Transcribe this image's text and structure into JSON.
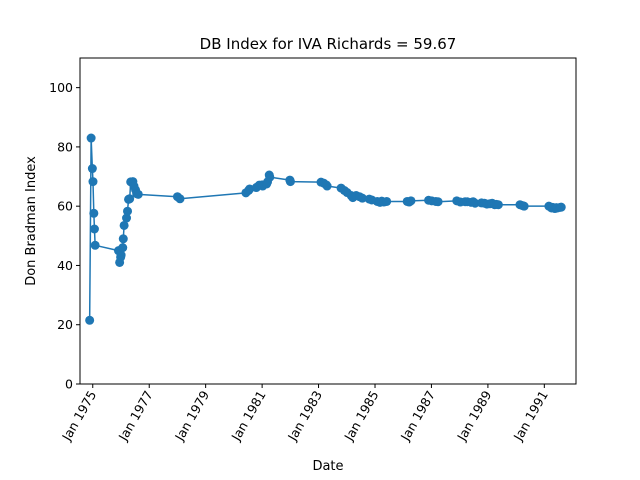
{
  "chart_data": {
    "type": "line",
    "title": "DB Index for IVA Richards = 59.67",
    "xlabel": "Date",
    "ylabel": "Don Bradman Index",
    "ylim": [
      0,
      110
    ],
    "yticks": [
      0,
      20,
      40,
      60,
      80,
      100
    ],
    "xlim": [
      "1974-07-20",
      "1992-02-15"
    ],
    "xticks": [
      {
        "date": "1975-01-01",
        "label": "Jan 1975"
      },
      {
        "date": "1977-01-01",
        "label": "Jan 1977"
      },
      {
        "date": "1979-01-01",
        "label": "Jan 1979"
      },
      {
        "date": "1981-01-01",
        "label": "Jan 1981"
      },
      {
        "date": "1983-01-01",
        "label": "Jan 1983"
      },
      {
        "date": "1985-01-01",
        "label": "Jan 1985"
      },
      {
        "date": "1987-01-01",
        "label": "Jan 1987"
      },
      {
        "date": "1989-01-01",
        "label": "Jan 1989"
      },
      {
        "date": "1991-01-01",
        "label": "Jan 1991"
      }
    ],
    "grid": false,
    "color": "#1f77b4",
    "series": [
      {
        "x": [
          "1974-11-22",
          "1974-12-11",
          "1974-12-27",
          "1975-01-04",
          "1975-01-15",
          "1975-01-23",
          "1975-02-01",
          "1975-11-30",
          "1975-12-15",
          "1975-12-28",
          "1976-01-03",
          "1976-01-24",
          "1976-01-31",
          "1976-02-11",
          "1976-03-13",
          "1976-03-26",
          "1976-04-08",
          "1976-04-23",
          "1976-05-06",
          "1976-06-03",
          "1976-06-17",
          "1976-07-08",
          "1976-07-22",
          "1976-08-12",
          "1978-01-01",
          "1978-02-03",
          "1980-06-05",
          "1980-07-10",
          "1980-07-24",
          "1980-10-18",
          "1980-11-25",
          "1981-01-01",
          "1981-01-08",
          "1981-02-28",
          "1981-03-12",
          "1981-04-03",
          "1981-04-10",
          "1981-12-26",
          "1982-01-02",
          "1983-02-02",
          "1983-03-08",
          "1983-04-10",
          "1983-04-22",
          "1983-10-20",
          "1983-12-01",
          "1984-01-06",
          "1984-02-27",
          "1984-03-20",
          "1984-05-02",
          "1984-06-15",
          "1984-07-21",
          "1984-10-19",
          "1984-11-20",
          "1985-01-30",
          "1985-03-05",
          "1985-03-29",
          "1985-04-25",
          "1985-06-01",
          "1986-02-21",
          "1986-03-19",
          "1986-04-11",
          "1986-11-25",
          "1987-01-05",
          "1987-02-27",
          "1987-03-28",
          "1987-11-25",
          "1988-01-11",
          "1988-03-12",
          "1988-04-08",
          "1988-05-28",
          "1988-06-24",
          "1988-07-19",
          "1988-10-10",
          "1988-11-18",
          "1988-12-19",
          "1989-01-27",
          "1989-02-25",
          "1989-03-30",
          "1989-04-21",
          "1989-05-16",
          "1990-02-20",
          "1990-03-25",
          "1990-04-15",
          "1991-03-01",
          "1991-03-24",
          "1991-04-05",
          "1991-04-20",
          "1991-05-18",
          "1991-06-06",
          "1991-06-20",
          "1991-07-26",
          "1991-08-08"
        ],
        "y": [
          21.5,
          83,
          72.7,
          68.3,
          57.6,
          52.3,
          46.8,
          45,
          41,
          42.8,
          43.5,
          46,
          49,
          53.5,
          56,
          58.3,
          62.3,
          62.5,
          68.2,
          68.3,
          66.8,
          65.5,
          64.2,
          64.0,
          63.2,
          62.5,
          64.5,
          65.3,
          65.8,
          66.3,
          67.1,
          67.2,
          66.8,
          67.5,
          68.2,
          70.5,
          69.8,
          68.8,
          68.3,
          68.1,
          67.8,
          67.2,
          66.8,
          66.1,
          65.3,
          64.6,
          63.6,
          62.9,
          63.6,
          63.2,
          62.7,
          62.4,
          62.1,
          61.6,
          61.3,
          61.7,
          61.4,
          61.6,
          61.6,
          61.4,
          61.8,
          62.0,
          61.8,
          61.6,
          61.5,
          61.8,
          61.4,
          61.5,
          61.5,
          61.3,
          61.5,
          61.0,
          61.1,
          61.0,
          60.7,
          60.8,
          61.0,
          60.5,
          60.6,
          60.5,
          60.5,
          60.2,
          60.0,
          60.0,
          59.7,
          59.4,
          59.6,
          59.2,
          59.5,
          59.4,
          59.6,
          59.67
        ]
      }
    ]
  }
}
